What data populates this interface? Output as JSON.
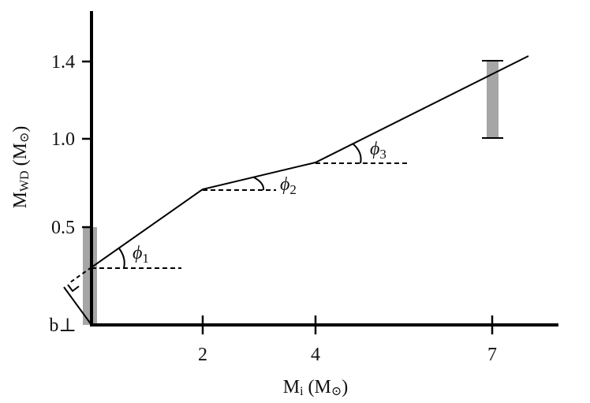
{
  "axes": {
    "x_title_main": "M",
    "x_title_sub": "i",
    "x_title_unit": " (M",
    "x_title_sun": "⊙",
    "x_title_close": ")",
    "y_title_main": "M",
    "y_title_sub": "WD",
    "y_title_unit": " (M",
    "y_title_sun": "⊙",
    "y_title_close": ")",
    "x_ticks": [
      "2",
      "4",
      "7"
    ],
    "y_ticks": [
      "0.5",
      "1.0",
      "1.4"
    ],
    "origin_label": "b⊥"
  },
  "angles": [
    {
      "symbol": "ϕ",
      "sub": "1"
    },
    {
      "symbol": "ϕ",
      "sub": "2"
    },
    {
      "symbol": "ϕ",
      "sub": "3"
    }
  ],
  "colors": {
    "axis": "#000000",
    "line": "#000000",
    "bar": "#a6a6a6"
  }
}
